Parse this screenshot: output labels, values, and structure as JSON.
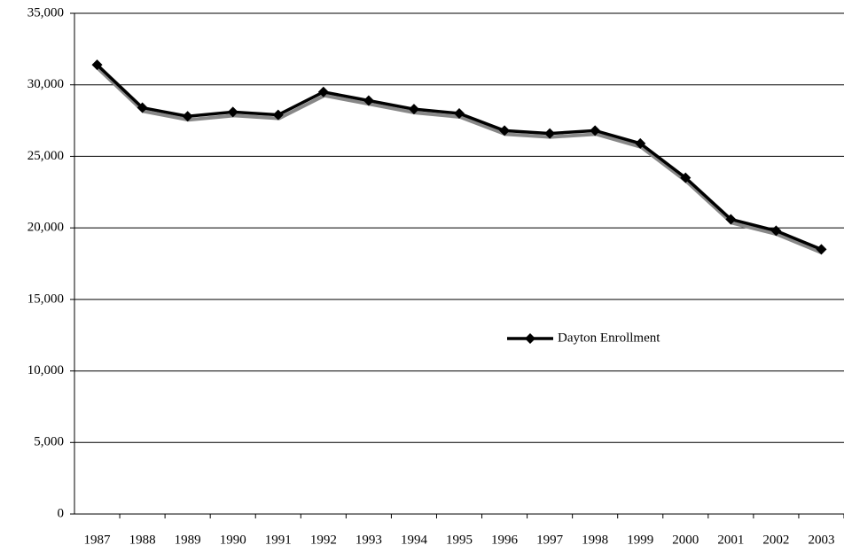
{
  "chart_data": {
    "type": "line",
    "categories": [
      "1987",
      "1988",
      "1989",
      "1990",
      "1991",
      "1992",
      "1993",
      "1994",
      "1995",
      "1996",
      "1997",
      "1998",
      "1999",
      "2000",
      "2001",
      "2002",
      "2003"
    ],
    "series": [
      {
        "name": "Dayton Enrollment",
        "color": "#000000",
        "values": [
          31400,
          28400,
          27800,
          28100,
          27900,
          29500,
          28900,
          28300,
          28000,
          26800,
          26600,
          26800,
          25900,
          23500,
          20600,
          19800,
          18500
        ]
      }
    ],
    "ylim": [
      0,
      35000
    ],
    "yticks": [
      0,
      {
        "value": 5000,
        "label": "5,000"
      },
      {
        "value": 10000,
        "label": "10,000"
      },
      {
        "value": 15000,
        "label": "15,000"
      },
      {
        "value": 20000,
        "label": "20,000"
      },
      {
        "value": 25000,
        "label": "25,000"
      },
      {
        "value": 30000,
        "label": "30,000"
      },
      {
        "value": 35000,
        "label": "35,000"
      }
    ],
    "grid": true,
    "legend": "center-right"
  }
}
